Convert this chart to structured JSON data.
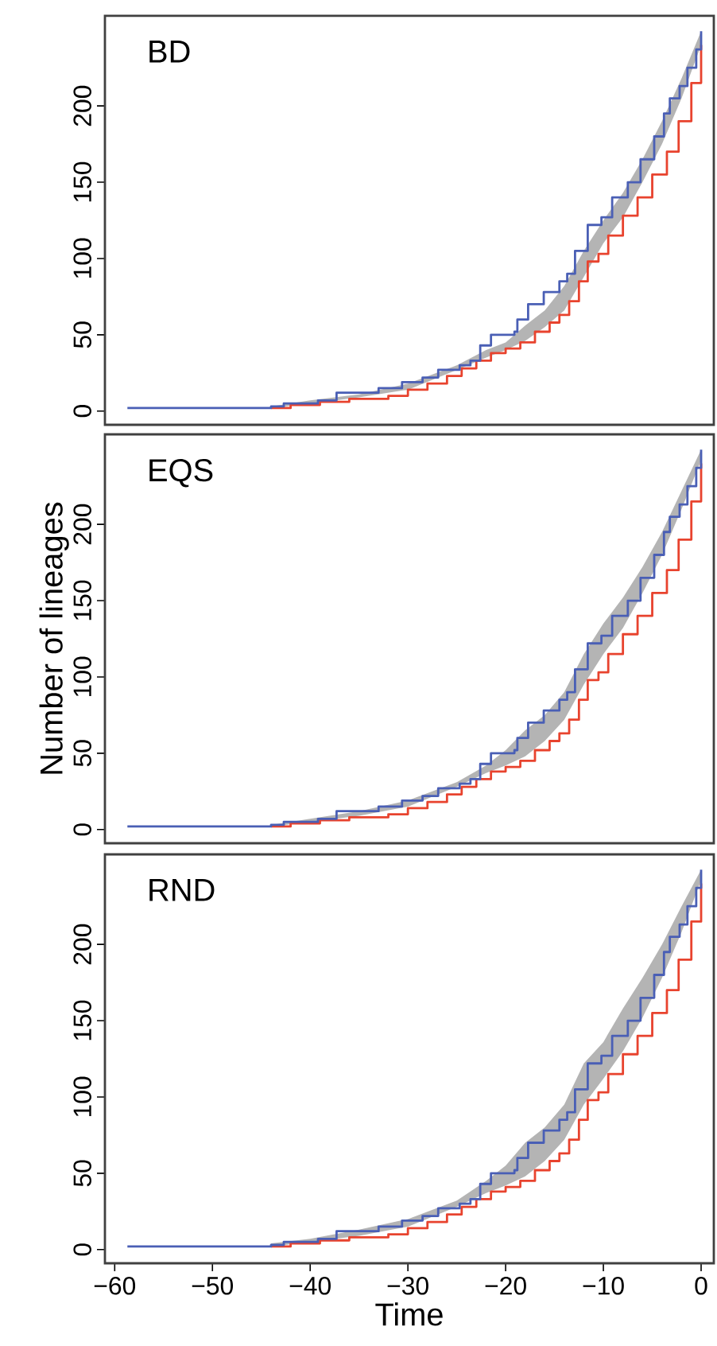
{
  "chart_data": [
    {
      "type": "step",
      "title": "BD",
      "xlim": [
        -61,
        1.3
      ],
      "ylim": [
        -9,
        259
      ],
      "yticks": [
        0,
        50,
        100,
        150,
        200
      ],
      "tick_labels": "y",
      "series": [
        {
          "type": "area",
          "color": "#b4b4b4",
          "x": [
            -44,
            -40,
            -35,
            -30,
            -25,
            -22,
            -20,
            -18,
            -16,
            -14,
            -12,
            -10,
            -8,
            -6,
            -4,
            -2,
            0
          ],
          "values": [
            null,
            null,
            null,
            null,
            null,
            null,
            null,
            null,
            null,
            null,
            null,
            null,
            null,
            null,
            null,
            null,
            null
          ],
          "lower": [
            2,
            5,
            9,
            14,
            27,
            35,
            40,
            46,
            55,
            66,
            88,
            110,
            127,
            150,
            175,
            205,
            240
          ],
          "upper": [
            3,
            7,
            11,
            18,
            30,
            40,
            45,
            56,
            66,
            82,
            105,
            125,
            143,
            165,
            190,
            218,
            249
          ]
        },
        {
          "color": "#e8432e",
          "x": [
            -44,
            -42,
            -39,
            -36,
            -32,
            -30,
            -28,
            -26,
            -24.5,
            -23,
            -21.5,
            -20,
            -18.5,
            -17,
            -15.5,
            -14.5,
            -13.5,
            -12.5,
            -11.6,
            -10.5,
            -9.5,
            -8,
            -6.5,
            -5,
            -3.5,
            -2.3,
            -1,
            0
          ],
          "values": [
            2,
            4,
            6,
            8,
            10,
            14,
            18,
            23,
            28,
            33,
            38,
            41,
            45,
            52,
            58,
            63,
            72,
            85,
            98,
            103,
            115,
            128,
            140,
            155,
            170,
            190,
            215,
            240
          ]
        },
        {
          "color": "#4a5fb5",
          "x": [
            -58.7,
            -44,
            -42.7,
            -39.2,
            -37.3,
            -33,
            -30.6,
            -28.5,
            -26.9,
            -24.7,
            -23.6,
            -22.6,
            -21.5,
            -19.1,
            -18.8,
            -17.7,
            -16.1,
            -14.5,
            -13.7,
            -12.9,
            -11.6,
            -10.2,
            -9.1,
            -7.5,
            -6.2,
            -4.8,
            -3.8,
            -3.2,
            -2.2,
            -1.4,
            -0.5,
            0
          ],
          "values": [
            2,
            3,
            5,
            7,
            12,
            15,
            19,
            22,
            27,
            30,
            33,
            43,
            50,
            52,
            60,
            70,
            78,
            85,
            90,
            105,
            122,
            127,
            140,
            150,
            165,
            180,
            195,
            205,
            213,
            225,
            237,
            249
          ]
        }
      ]
    },
    {
      "type": "step",
      "title": "EQS",
      "ylabel": "Number of lineages",
      "xlim": [
        -61,
        1.3
      ],
      "ylim": [
        -9,
        259
      ],
      "yticks": [
        0,
        50,
        100,
        150,
        200
      ],
      "tick_labels": "y",
      "series": [
        {
          "type": "area",
          "color": "#b4b4b4",
          "x": [
            -44,
            -40,
            -35,
            -30,
            -25,
            -22,
            -20,
            -18,
            -16,
            -14,
            -12,
            -10,
            -8,
            -6,
            -4,
            -2,
            0
          ],
          "values": [
            null,
            null,
            null,
            null,
            null,
            null,
            null,
            null,
            null,
            null,
            null,
            null,
            null,
            null,
            null,
            null,
            null
          ],
          "lower": [
            2,
            5,
            9,
            15,
            28,
            37,
            42,
            48,
            58,
            72,
            95,
            115,
            132,
            155,
            180,
            210,
            242
          ],
          "upper": [
            3,
            7,
            12,
            19,
            31,
            42,
            52,
            65,
            75,
            90,
            115,
            135,
            152,
            172,
            195,
            222,
            249
          ]
        },
        {
          "color": "#e8432e",
          "x": [
            -44,
            -42,
            -39,
            -36,
            -32,
            -30,
            -28,
            -26,
            -24.5,
            -23,
            -21.5,
            -20,
            -18.5,
            -17,
            -15.5,
            -14.5,
            -13.5,
            -12.5,
            -11.6,
            -10.5,
            -9.5,
            -8,
            -6.5,
            -5,
            -3.5,
            -2.3,
            -1,
            0
          ],
          "values": [
            2,
            4,
            6,
            8,
            10,
            14,
            18,
            23,
            28,
            33,
            38,
            41,
            45,
            52,
            58,
            63,
            72,
            85,
            98,
            103,
            115,
            128,
            140,
            155,
            170,
            190,
            215,
            240
          ]
        },
        {
          "color": "#4a5fb5",
          "x": [
            -58.7,
            -44,
            -42.7,
            -39.2,
            -37.3,
            -33,
            -30.6,
            -28.5,
            -26.9,
            -24.7,
            -23.6,
            -22.6,
            -21.5,
            -19.1,
            -18.8,
            -17.7,
            -16.1,
            -14.5,
            -13.7,
            -12.9,
            -11.6,
            -10.2,
            -9.1,
            -7.5,
            -6.2,
            -4.8,
            -3.8,
            -3.2,
            -2.2,
            -1.4,
            -0.5,
            0
          ],
          "values": [
            2,
            3,
            5,
            7,
            12,
            15,
            19,
            22,
            27,
            30,
            33,
            43,
            50,
            52,
            60,
            70,
            78,
            85,
            90,
            105,
            122,
            127,
            140,
            150,
            165,
            180,
            195,
            205,
            213,
            225,
            237,
            249
          ]
        }
      ]
    },
    {
      "type": "step",
      "title": "RND",
      "xlabel": "Time",
      "xlim": [
        -61,
        1.3
      ],
      "ylim": [
        -9,
        259
      ],
      "xticks": [
        {
          "value": -60,
          "label": "−60"
        },
        {
          "value": -50,
          "label": "−50"
        },
        {
          "value": -40,
          "label": "−40"
        },
        {
          "value": -30,
          "label": "−30"
        },
        {
          "value": -20,
          "label": "−20"
        },
        {
          "value": -10,
          "label": "−10"
        },
        0
      ],
      "yticks": [
        0,
        50,
        100,
        150,
        200
      ],
      "series": [
        {
          "type": "area",
          "color": "#b4b4b4",
          "x": [
            -44,
            -40,
            -35,
            -30,
            -25,
            -22,
            -20,
            -18,
            -16,
            -14,
            -12,
            -10,
            -8,
            -6,
            -4,
            -2,
            0
          ],
          "values": [
            null,
            null,
            null,
            null,
            null,
            null,
            null,
            null,
            null,
            null,
            null,
            null,
            null,
            null,
            null,
            null,
            null
          ],
          "lower": [
            2,
            5,
            9,
            15,
            28,
            37,
            42,
            48,
            58,
            72,
            95,
            112,
            130,
            152,
            178,
            208,
            242
          ],
          "upper": [
            4,
            7,
            13,
            20,
            32,
            45,
            55,
            70,
            80,
            95,
            122,
            136,
            158,
            178,
            200,
            225,
            249
          ]
        },
        {
          "color": "#e8432e",
          "x": [
            -44,
            -42,
            -39,
            -36,
            -32,
            -30,
            -28,
            -26,
            -24.5,
            -23,
            -21.5,
            -20,
            -18.5,
            -17,
            -15.5,
            -14.5,
            -13.5,
            -12.5,
            -11.6,
            -10.5,
            -9.5,
            -8,
            -6.5,
            -5,
            -3.5,
            -2.3,
            -1,
            0
          ],
          "values": [
            2,
            4,
            6,
            8,
            10,
            14,
            18,
            23,
            28,
            33,
            38,
            41,
            45,
            52,
            58,
            63,
            72,
            85,
            98,
            103,
            115,
            128,
            140,
            155,
            170,
            190,
            215,
            240
          ]
        },
        {
          "color": "#4a5fb5",
          "x": [
            -58.7,
            -44,
            -42.7,
            -39.2,
            -37.3,
            -33,
            -30.6,
            -28.5,
            -26.9,
            -24.7,
            -23.6,
            -22.6,
            -21.5,
            -19.1,
            -18.8,
            -17.7,
            -16.1,
            -14.5,
            -13.7,
            -12.9,
            -11.6,
            -10.2,
            -9.1,
            -7.5,
            -6.2,
            -4.8,
            -3.8,
            -3.2,
            -2.2,
            -1.4,
            -0.5,
            0
          ],
          "values": [
            2,
            3,
            5,
            7,
            12,
            15,
            19,
            22,
            27,
            30,
            33,
            43,
            50,
            52,
            60,
            70,
            78,
            85,
            90,
            105,
            122,
            127,
            140,
            150,
            165,
            180,
            195,
            205,
            213,
            225,
            237,
            249
          ]
        }
      ]
    }
  ]
}
